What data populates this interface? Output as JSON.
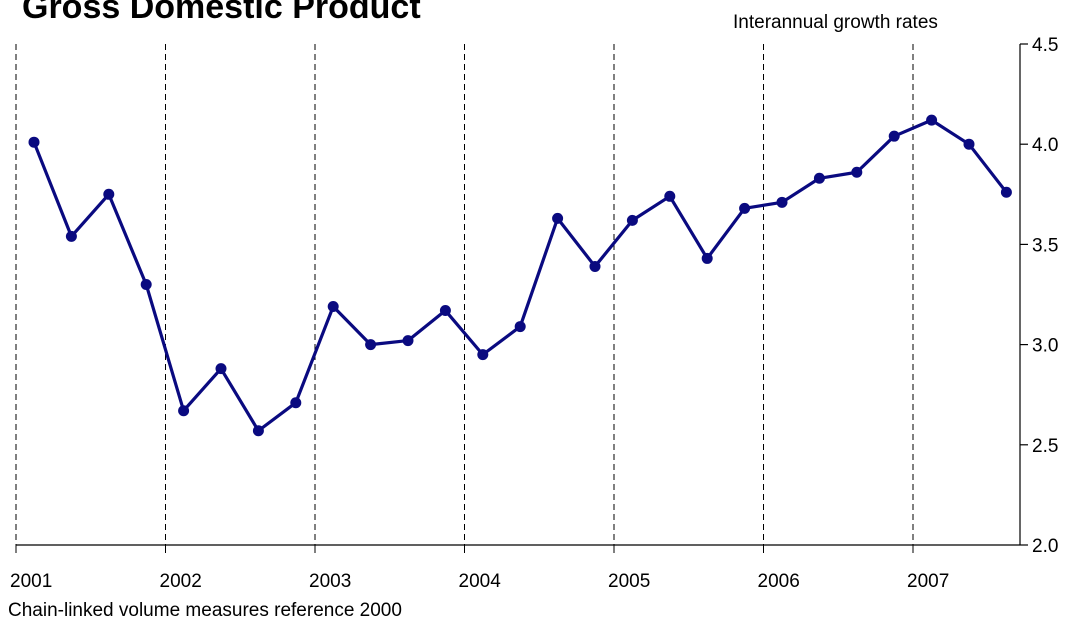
{
  "title": "Gross Domestic Product",
  "subtitle": "Interannual growth rates",
  "footnote": "Chain-linked volume measures reference 2000",
  "colors": {
    "series": "#0a0a80",
    "axis": "#000000",
    "grid": "#000000"
  },
  "chart_data": {
    "type": "line",
    "title": "Gross Domestic Product",
    "subtitle": "Interannual growth rates",
    "xlabel": "",
    "ylabel": "",
    "x_tick_labels": [
      "2001",
      "2002",
      "2003",
      "2004",
      "2005",
      "2006",
      "2007"
    ],
    "y_ticks": [
      "2.0",
      "2.5",
      "3.0",
      "3.5",
      "4.0",
      "4.5"
    ],
    "ylim": [
      2.0,
      4.5
    ],
    "y_axis_side": "right",
    "grid": "vertical dashed lines at year boundaries",
    "x": [
      "2001Q1",
      "2001Q2",
      "2001Q3",
      "2001Q4",
      "2002Q1",
      "2002Q2",
      "2002Q3",
      "2002Q4",
      "2003Q1",
      "2003Q2",
      "2003Q3",
      "2003Q4",
      "2004Q1",
      "2004Q2",
      "2004Q3",
      "2004Q4",
      "2005Q1",
      "2005Q2",
      "2005Q3",
      "2005Q4",
      "2006Q1",
      "2006Q2",
      "2006Q3",
      "2006Q4",
      "2007Q1",
      "2007Q2",
      "2007Q3"
    ],
    "series": [
      {
        "values": [
          4.01,
          3.54,
          3.75,
          3.3,
          2.67,
          2.88,
          2.57,
          2.71,
          3.19,
          3.0,
          3.02,
          3.17,
          2.95,
          3.09,
          3.63,
          3.39,
          3.62,
          3.74,
          3.43,
          3.68,
          3.71,
          3.83,
          3.86,
          4.04,
          4.12,
          4.0,
          3.76
        ]
      }
    ]
  }
}
